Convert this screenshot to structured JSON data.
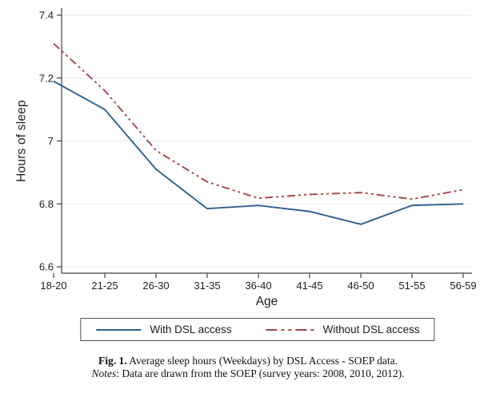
{
  "chart_data": {
    "type": "line",
    "title": "",
    "xlabel": "Age",
    "ylabel": "Hours of sleep",
    "categories": [
      "18-20",
      "21-25",
      "26-30",
      "31-35",
      "36-40",
      "41-45",
      "46-50",
      "51-55",
      "56-59"
    ],
    "series": [
      {
        "name": "With DSL access",
        "color": "#2d6191",
        "line_style": "solid",
        "values": [
          7.19,
          7.1,
          6.91,
          6.785,
          6.795,
          6.776,
          6.735,
          6.795,
          6.8
        ]
      },
      {
        "name": "Without DSL access",
        "color": "#a8434b",
        "line_style": "dash-dot-dot",
        "values": [
          7.31,
          7.16,
          6.97,
          6.87,
          6.818,
          6.83,
          6.836,
          6.815,
          6.845
        ]
      }
    ],
    "ylim": [
      6.6,
      7.4
    ],
    "yticks": [
      6.6,
      6.8,
      7.0,
      7.2,
      7.4
    ],
    "ytick_labels": [
      "6.6",
      "6.8",
      "7",
      "7.2",
      "7.4"
    ],
    "grid": "horizontal",
    "gridline_color": "#e2edf2",
    "axis_color": "#3f3f3f",
    "tick_label_color": "#1f1f1f",
    "legend_position": "bottom"
  },
  "legend": {
    "items": [
      {
        "label": "With DSL access"
      },
      {
        "label": "Without DSL access"
      }
    ]
  },
  "caption": {
    "fig_label": "Fig. 1.",
    "fig_text": " Average sleep hours (Weekdays) by DSL Access - SOEP data.",
    "notes_label": "Notes",
    "notes_text": ": Data are drawn from the SOEP (survey years: 2008, 2010, 2012)."
  }
}
